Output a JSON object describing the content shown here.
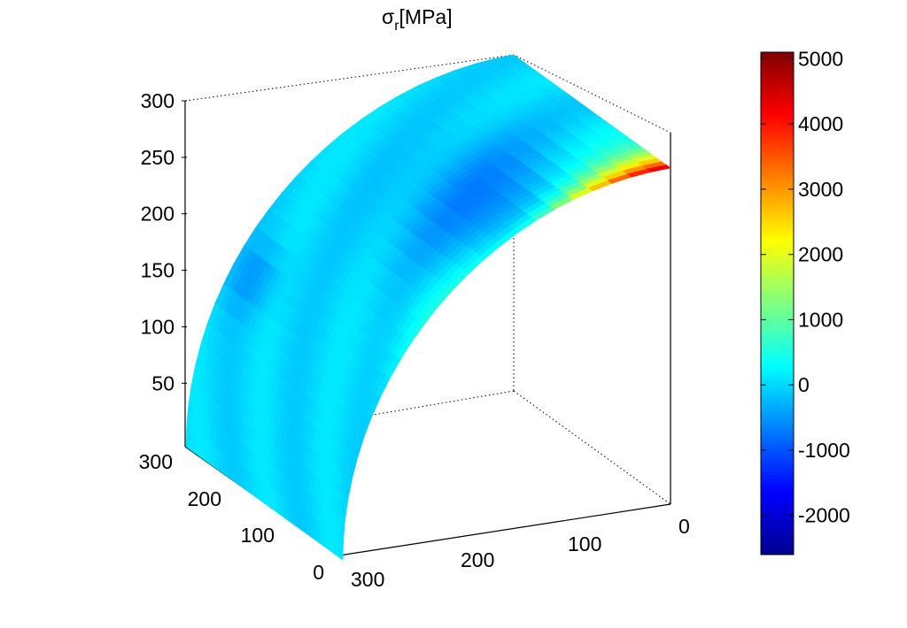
{
  "chart_data": {
    "type": "surface",
    "title": "σ",
    "title_subscript": "r",
    "title_unit": "[MPa]",
    "z_ticks": [
      "300",
      "250",
      "200",
      "150",
      "100",
      "50"
    ],
    "left_axis_ticks": [
      "300",
      "200",
      "100",
      "0"
    ],
    "right_axis_ticks": [
      "300",
      "200",
      "100",
      "0"
    ],
    "colorbar": {
      "colormap": "jet",
      "range": [
        -2600,
        5100
      ],
      "ticks": [
        "5000",
        "4000",
        "3000",
        "2000",
        "1000",
        "0",
        "-1000",
        "-2000"
      ]
    },
    "grid": true,
    "colors": {
      "background": "#ffffff",
      "grid": "#000000"
    }
  }
}
